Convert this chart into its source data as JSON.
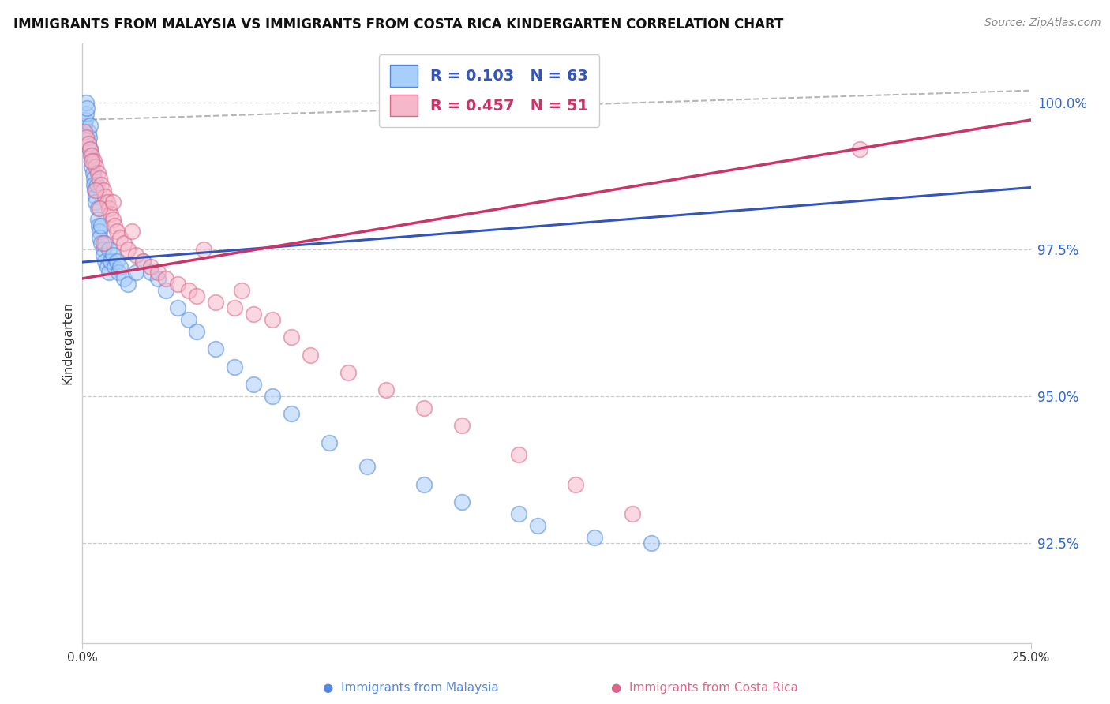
{
  "title": "IMMIGRANTS FROM MALAYSIA VS IMMIGRANTS FROM COSTA RICA KINDERGARTEN CORRELATION CHART",
  "source": "Source: ZipAtlas.com",
  "ylabel": "Kindergarten",
  "xmin": 0.0,
  "xmax": 25.0,
  "ymin": 90.8,
  "ymax": 101.0,
  "yticks": [
    92.5,
    95.0,
    97.5,
    100.0
  ],
  "ytick_labels": [
    "92.5%",
    "95.0%",
    "97.5%",
    "100.0%"
  ],
  "malaysia_R": 0.103,
  "malaysia_N": 63,
  "costarica_R": 0.457,
  "costarica_N": 51,
  "color_malaysia_fill": "#A8CEFA",
  "color_malaysia_edge": "#5588DD",
  "color_costarica_fill": "#F5B8CA",
  "color_costarica_edge": "#DD6688",
  "color_malaysia_line": "#3355BB",
  "color_costarica_line": "#CC3366",
  "color_dashed": "#AAAAAA",
  "color_grid": "#CCCCCC",
  "malaysia_x": [
    0.05,
    0.08,
    0.1,
    0.1,
    0.12,
    0.15,
    0.15,
    0.18,
    0.2,
    0.2,
    0.22,
    0.25,
    0.25,
    0.28,
    0.3,
    0.3,
    0.32,
    0.35,
    0.35,
    0.38,
    0.4,
    0.4,
    0.42,
    0.45,
    0.45,
    0.5,
    0.5,
    0.55,
    0.55,
    0.6,
    0.6,
    0.65,
    0.7,
    0.7,
    0.75,
    0.8,
    0.85,
    0.9,
    0.95,
    1.0,
    1.1,
    1.2,
    1.4,
    1.6,
    1.8,
    2.0,
    2.2,
    2.5,
    2.8,
    3.0,
    3.5,
    4.0,
    4.5,
    5.0,
    5.5,
    6.5,
    7.5,
    9.0,
    10.0,
    11.5,
    12.0,
    13.5,
    15.0
  ],
  "malaysia_y": [
    99.6,
    99.7,
    99.8,
    100.0,
    99.9,
    99.5,
    99.3,
    99.4,
    99.6,
    99.2,
    99.1,
    99.0,
    98.9,
    98.8,
    98.7,
    98.6,
    98.5,
    98.4,
    98.3,
    98.6,
    98.2,
    98.0,
    97.9,
    97.8,
    97.7,
    97.9,
    97.6,
    97.5,
    97.4,
    97.3,
    97.6,
    97.2,
    97.5,
    97.1,
    97.3,
    97.4,
    97.2,
    97.3,
    97.1,
    97.2,
    97.0,
    96.9,
    97.1,
    97.3,
    97.1,
    97.0,
    96.8,
    96.5,
    96.3,
    96.1,
    95.8,
    95.5,
    95.2,
    95.0,
    94.7,
    94.2,
    93.8,
    93.5,
    93.2,
    93.0,
    92.8,
    92.6,
    92.5
  ],
  "costarica_x": [
    0.05,
    0.1,
    0.15,
    0.2,
    0.25,
    0.3,
    0.35,
    0.4,
    0.45,
    0.5,
    0.55,
    0.6,
    0.65,
    0.7,
    0.75,
    0.8,
    0.85,
    0.9,
    1.0,
    1.1,
    1.2,
    1.4,
    1.6,
    1.8,
    2.0,
    2.2,
    2.5,
    2.8,
    3.0,
    3.5,
    4.0,
    4.5,
    5.0,
    5.5,
    6.0,
    7.0,
    8.0,
    9.0,
    10.0,
    11.5,
    13.0,
    14.5,
    20.5,
    3.2,
    1.3,
    0.35,
    0.25,
    0.45,
    0.55,
    0.8,
    4.2
  ],
  "costarica_y": [
    99.5,
    99.4,
    99.3,
    99.2,
    99.1,
    99.0,
    98.9,
    98.8,
    98.7,
    98.6,
    98.5,
    98.4,
    98.3,
    98.2,
    98.1,
    98.0,
    97.9,
    97.8,
    97.7,
    97.6,
    97.5,
    97.4,
    97.3,
    97.2,
    97.1,
    97.0,
    96.9,
    96.8,
    96.7,
    96.6,
    96.5,
    96.4,
    96.3,
    96.0,
    95.7,
    95.4,
    95.1,
    94.8,
    94.5,
    94.0,
    93.5,
    93.0,
    99.2,
    97.5,
    97.8,
    98.5,
    99.0,
    98.2,
    97.6,
    98.3,
    96.8
  ]
}
